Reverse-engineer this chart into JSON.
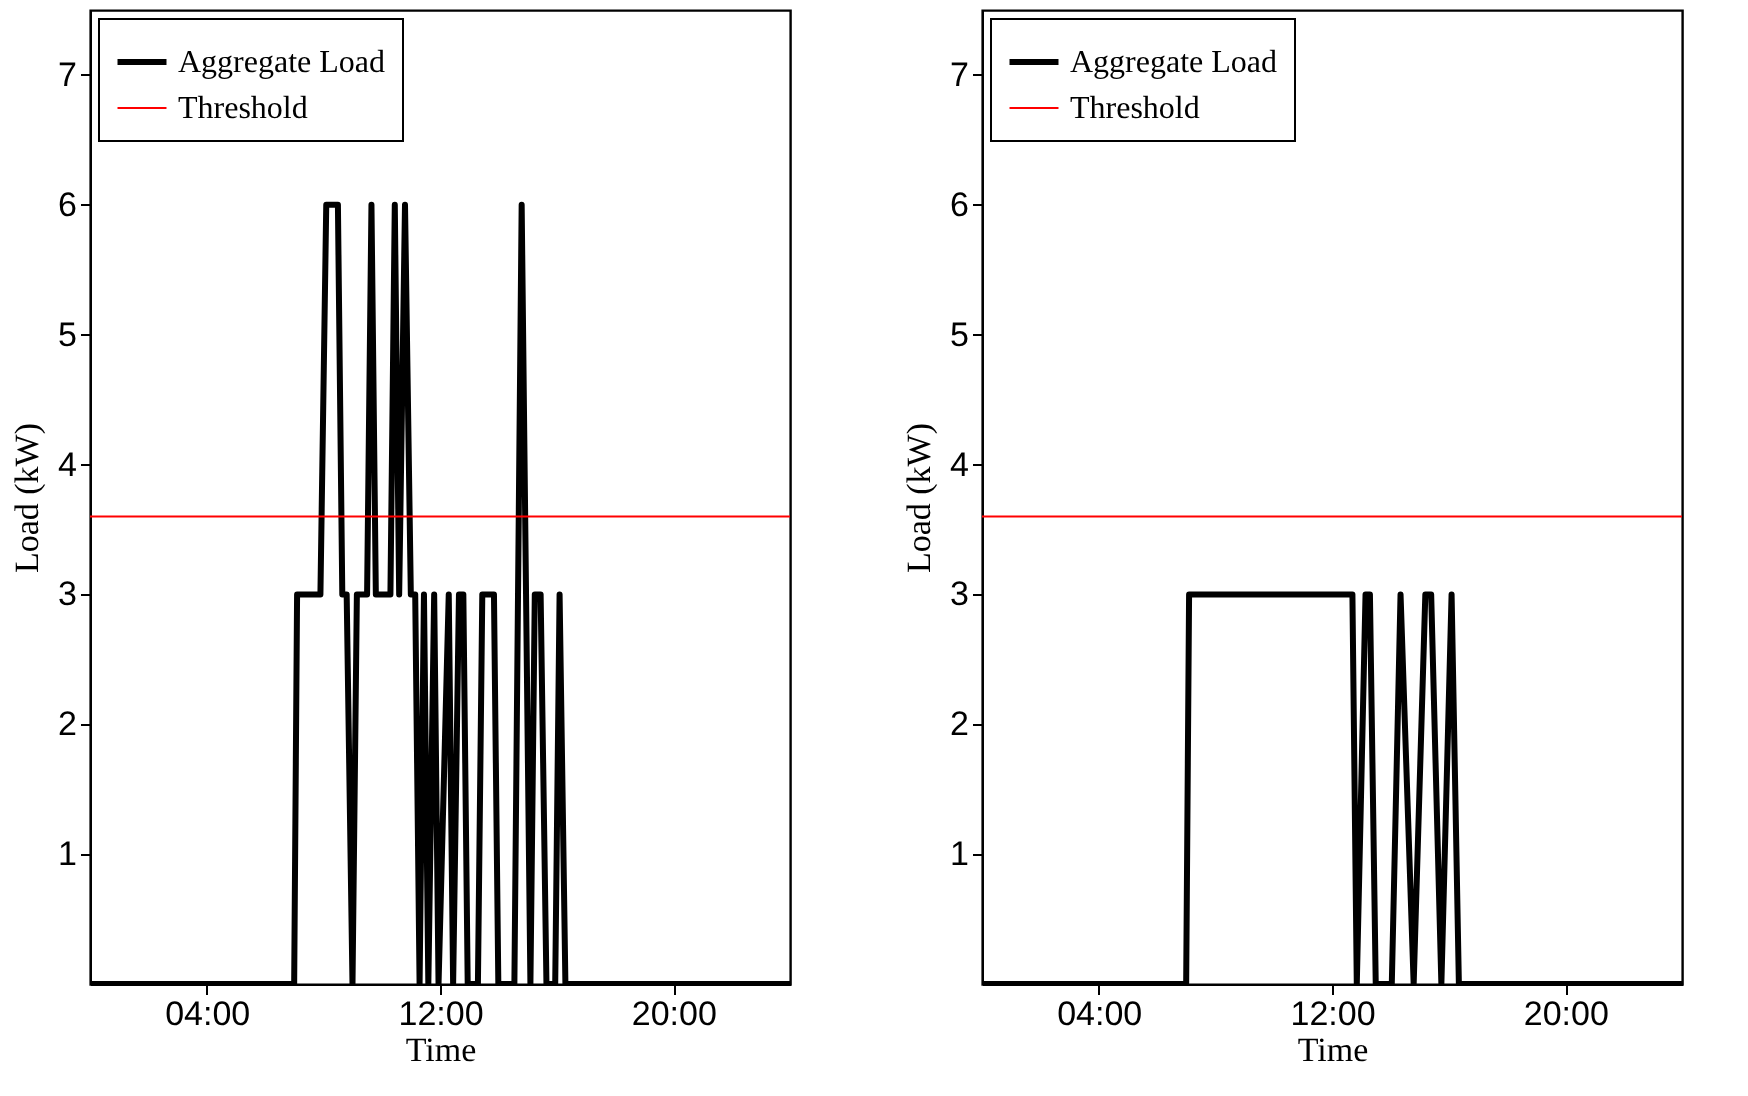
{
  "chart_data": [
    {
      "type": "line",
      "xlabel": "Time",
      "ylabel": "Load (kW)",
      "xlim": [
        0,
        24
      ],
      "xticks": [
        {
          "value": 4,
          "label": "04:00"
        },
        {
          "value": 12,
          "label": "12:00"
        },
        {
          "value": 20,
          "label": "20:00"
        }
      ],
      "ylim": [
        0,
        7.5
      ],
      "yticks": [
        1,
        2,
        3,
        4,
        5,
        6,
        7
      ],
      "grid": false,
      "legend": "top left",
      "line_style": "solid",
      "marker": "none",
      "series": [
        {
          "name": "Aggregate Load",
          "color": "#000000",
          "x": [
            0,
            7.0,
            7.1,
            7.9,
            8.1,
            8.5,
            8.65,
            8.8,
            9.0,
            9.15,
            9.5,
            9.65,
            9.8,
            10.3,
            10.45,
            10.6,
            10.8,
            11.0,
            11.15,
            11.3,
            11.45,
            11.6,
            11.8,
            11.95,
            12.3,
            12.45,
            12.65,
            12.8,
            12.95,
            13.3,
            13.45,
            13.85,
            14.0,
            14.55,
            14.8,
            15.1,
            15.25,
            15.45,
            15.65,
            15.95,
            16.1,
            16.3,
            24
          ],
          "values": [
            0,
            0,
            3,
            3,
            6,
            6,
            3,
            3,
            0,
            3,
            3,
            6,
            3,
            3,
            6,
            3,
            6,
            3,
            3,
            0,
            3,
            0,
            3,
            0,
            3,
            0,
            3,
            3,
            0,
            0,
            3,
            3,
            0,
            0,
            6,
            0,
            3,
            3,
            0,
            0,
            3,
            0,
            0
          ]
        }
      ],
      "ref_lines": [
        {
          "axis": "y",
          "value": 3.6,
          "label": "Threshold",
          "color": "#ff0000"
        }
      ]
    },
    {
      "type": "line",
      "xlabel": "Time",
      "ylabel": "Load (kW)",
      "xlim": [
        0,
        24
      ],
      "xticks": [
        {
          "value": 4,
          "label": "04:00"
        },
        {
          "value": 12,
          "label": "12:00"
        },
        {
          "value": 20,
          "label": "20:00"
        }
      ],
      "ylim": [
        0,
        7.5
      ],
      "yticks": [
        1,
        2,
        3,
        4,
        5,
        6,
        7
      ],
      "grid": false,
      "legend": "top left",
      "line_style": "solid",
      "marker": "none",
      "series": [
        {
          "name": "Aggregate Load",
          "color": "#000000",
          "x": [
            0,
            7.0,
            7.1,
            12.7,
            12.85,
            13.15,
            13.3,
            13.5,
            14.05,
            14.35,
            14.8,
            15.2,
            15.4,
            15.75,
            16.1,
            16.35,
            24
          ],
          "values": [
            0,
            0,
            3,
            3,
            0,
            3,
            3,
            0,
            0,
            3,
            0,
            3,
            3,
            0,
            3,
            0,
            0
          ]
        }
      ],
      "ref_lines": [
        {
          "axis": "y",
          "value": 3.6,
          "label": "Threshold",
          "color": "#ff0000"
        }
      ]
    }
  ]
}
